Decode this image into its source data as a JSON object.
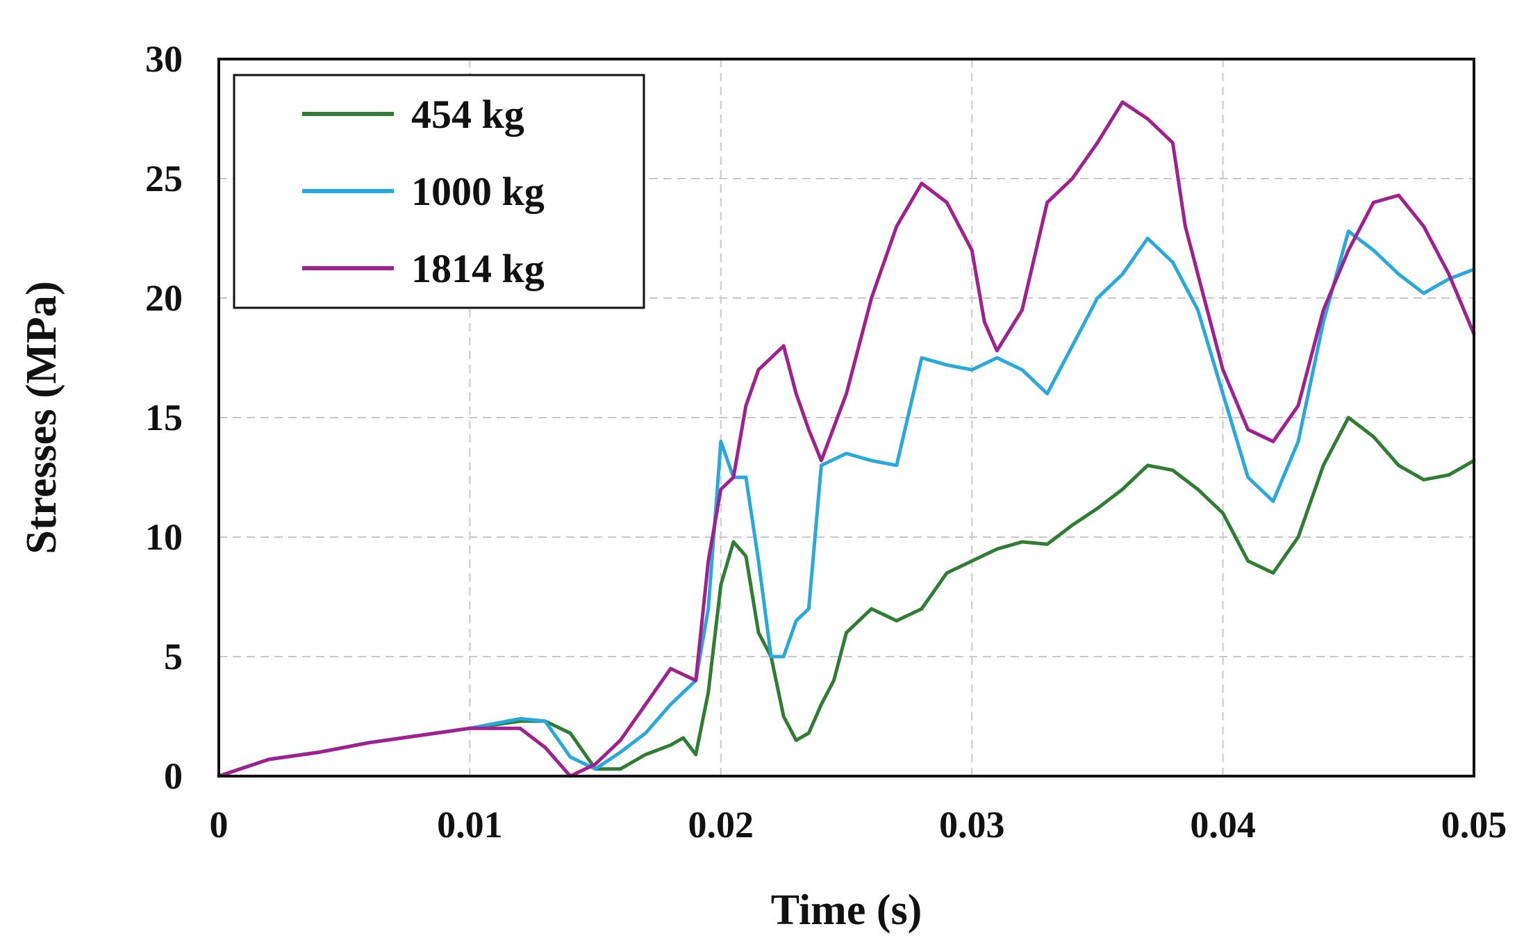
{
  "chart_data": {
    "type": "line",
    "xlabel": "Time (s)",
    "ylabel": "Stresses (MPa)",
    "xlim": [
      0,
      0.05
    ],
    "ylim": [
      0,
      30
    ],
    "xticks": [
      "0",
      "0.01",
      "0.02",
      "0.03",
      "0.04",
      "0.05"
    ],
    "yticks": [
      "0",
      "5",
      "10",
      "15",
      "20",
      "25",
      "30"
    ],
    "xtick_values": [
      0,
      0.01,
      0.02,
      0.03,
      0.04,
      0.05
    ],
    "ytick_values": [
      0,
      5,
      10,
      15,
      20,
      25,
      30
    ],
    "grid": true,
    "legend_position": "top-left",
    "series": [
      {
        "name": "454 kg",
        "color": "#2e7d32",
        "points": [
          [
            0,
            0
          ],
          [
            0.002,
            0.7
          ],
          [
            0.004,
            1.0
          ],
          [
            0.006,
            1.4
          ],
          [
            0.008,
            1.7
          ],
          [
            0.01,
            2.0
          ],
          [
            0.012,
            2.3
          ],
          [
            0.013,
            2.3
          ],
          [
            0.014,
            1.8
          ],
          [
            0.015,
            0.3
          ],
          [
            0.016,
            0.3
          ],
          [
            0.017,
            0.9
          ],
          [
            0.018,
            1.3
          ],
          [
            0.0185,
            1.6
          ],
          [
            0.019,
            0.9
          ],
          [
            0.0195,
            3.5
          ],
          [
            0.02,
            8.0
          ],
          [
            0.0205,
            9.8
          ],
          [
            0.021,
            9.2
          ],
          [
            0.0215,
            6.0
          ],
          [
            0.022,
            5.0
          ],
          [
            0.0225,
            2.5
          ],
          [
            0.023,
            1.5
          ],
          [
            0.0235,
            1.8
          ],
          [
            0.024,
            3.0
          ],
          [
            0.0245,
            4.0
          ],
          [
            0.025,
            6.0
          ],
          [
            0.026,
            7.0
          ],
          [
            0.027,
            6.5
          ],
          [
            0.028,
            7.0
          ],
          [
            0.029,
            8.5
          ],
          [
            0.03,
            9.0
          ],
          [
            0.031,
            9.5
          ],
          [
            0.032,
            9.8
          ],
          [
            0.033,
            9.7
          ],
          [
            0.034,
            10.5
          ],
          [
            0.035,
            11.2
          ],
          [
            0.036,
            12.0
          ],
          [
            0.037,
            13.0
          ],
          [
            0.038,
            12.8
          ],
          [
            0.039,
            12.0
          ],
          [
            0.04,
            11.0
          ],
          [
            0.041,
            9.0
          ],
          [
            0.042,
            8.5
          ],
          [
            0.043,
            10.0
          ],
          [
            0.044,
            13.0
          ],
          [
            0.045,
            15.0
          ],
          [
            0.046,
            14.2
          ],
          [
            0.047,
            13.0
          ],
          [
            0.048,
            12.4
          ],
          [
            0.049,
            12.6
          ],
          [
            0.05,
            13.2
          ]
        ]
      },
      {
        "name": "1000 kg",
        "color": "#29a8dc",
        "points": [
          [
            0,
            0
          ],
          [
            0.002,
            0.7
          ],
          [
            0.004,
            1.0
          ],
          [
            0.006,
            1.4
          ],
          [
            0.008,
            1.7
          ],
          [
            0.01,
            2.0
          ],
          [
            0.012,
            2.4
          ],
          [
            0.013,
            2.3
          ],
          [
            0.014,
            0.8
          ],
          [
            0.015,
            0.3
          ],
          [
            0.016,
            1.0
          ],
          [
            0.017,
            1.8
          ],
          [
            0.018,
            3.0
          ],
          [
            0.019,
            4.0
          ],
          [
            0.0195,
            7.0
          ],
          [
            0.02,
            14.0
          ],
          [
            0.0205,
            12.5
          ],
          [
            0.021,
            12.5
          ],
          [
            0.0215,
            9.0
          ],
          [
            0.022,
            5.0
          ],
          [
            0.0225,
            5.0
          ],
          [
            0.023,
            6.5
          ],
          [
            0.0235,
            7.0
          ],
          [
            0.024,
            13.0
          ],
          [
            0.025,
            13.5
          ],
          [
            0.026,
            13.2
          ],
          [
            0.027,
            13.0
          ],
          [
            0.028,
            17.5
          ],
          [
            0.029,
            17.2
          ],
          [
            0.03,
            17.0
          ],
          [
            0.031,
            17.5
          ],
          [
            0.032,
            17.0
          ],
          [
            0.033,
            16.0
          ],
          [
            0.034,
            18.0
          ],
          [
            0.035,
            20.0
          ],
          [
            0.036,
            21.0
          ],
          [
            0.037,
            22.5
          ],
          [
            0.038,
            21.5
          ],
          [
            0.039,
            19.5
          ],
          [
            0.04,
            16.0
          ],
          [
            0.041,
            12.5
          ],
          [
            0.042,
            11.5
          ],
          [
            0.043,
            14.0
          ],
          [
            0.044,
            19.0
          ],
          [
            0.045,
            22.8
          ],
          [
            0.046,
            22.0
          ],
          [
            0.047,
            21.0
          ],
          [
            0.048,
            20.2
          ],
          [
            0.049,
            20.8
          ],
          [
            0.05,
            21.2
          ]
        ]
      },
      {
        "name": "1814 kg",
        "color": "#a0208f",
        "points": [
          [
            0,
            0
          ],
          [
            0.002,
            0.7
          ],
          [
            0.004,
            1.0
          ],
          [
            0.006,
            1.4
          ],
          [
            0.008,
            1.7
          ],
          [
            0.01,
            2.0
          ],
          [
            0.012,
            2.0
          ],
          [
            0.013,
            1.2
          ],
          [
            0.014,
            0.0
          ],
          [
            0.015,
            0.5
          ],
          [
            0.016,
            1.5
          ],
          [
            0.017,
            3.0
          ],
          [
            0.018,
            4.5
          ],
          [
            0.019,
            4.0
          ],
          [
            0.0195,
            9.0
          ],
          [
            0.02,
            12.0
          ],
          [
            0.0205,
            12.5
          ],
          [
            0.021,
            15.5
          ],
          [
            0.0215,
            17.0
          ],
          [
            0.022,
            17.5
          ],
          [
            0.0225,
            18.0
          ],
          [
            0.023,
            16.0
          ],
          [
            0.0235,
            14.5
          ],
          [
            0.024,
            13.2
          ],
          [
            0.025,
            16.0
          ],
          [
            0.026,
            20.0
          ],
          [
            0.027,
            23.0
          ],
          [
            0.028,
            24.8
          ],
          [
            0.029,
            24.0
          ],
          [
            0.03,
            22.0
          ],
          [
            0.0305,
            19.0
          ],
          [
            0.031,
            17.8
          ],
          [
            0.032,
            19.5
          ],
          [
            0.033,
            24.0
          ],
          [
            0.034,
            25.0
          ],
          [
            0.035,
            26.5
          ],
          [
            0.036,
            28.2
          ],
          [
            0.037,
            27.5
          ],
          [
            0.038,
            26.5
          ],
          [
            0.0385,
            23.0
          ],
          [
            0.039,
            21.0
          ],
          [
            0.04,
            17.0
          ],
          [
            0.041,
            14.5
          ],
          [
            0.042,
            14.0
          ],
          [
            0.043,
            15.5
          ],
          [
            0.044,
            19.5
          ],
          [
            0.045,
            22.0
          ],
          [
            0.046,
            24.0
          ],
          [
            0.047,
            24.3
          ],
          [
            0.048,
            23.0
          ],
          [
            0.049,
            21.0
          ],
          [
            0.05,
            18.5
          ]
        ]
      }
    ]
  }
}
